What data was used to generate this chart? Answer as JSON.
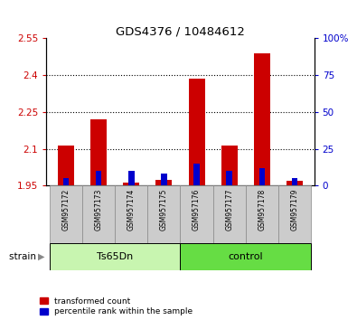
{
  "title": "GDS4376 / 10484612",
  "samples": [
    "GSM957172",
    "GSM957173",
    "GSM957174",
    "GSM957175",
    "GSM957176",
    "GSM957177",
    "GSM957178",
    "GSM957179"
  ],
  "groups": [
    "Ts65Dn",
    "Ts65Dn",
    "Ts65Dn",
    "Ts65Dn",
    "control",
    "control",
    "control",
    "control"
  ],
  "red_values": [
    2.115,
    2.22,
    1.963,
    1.973,
    2.385,
    2.115,
    2.49,
    1.968
  ],
  "blue_values": [
    5.0,
    10.0,
    10.0,
    8.0,
    15.0,
    10.0,
    12.0,
    5.0
  ],
  "ymin": 1.95,
  "ymax": 2.55,
  "yticks": [
    1.95,
    2.1,
    2.25,
    2.4,
    2.55
  ],
  "ytick_labels": [
    "1.95",
    "2.1",
    "2.25",
    "2.4",
    "2.55"
  ],
  "y2min": 0,
  "y2max": 100,
  "y2ticks": [
    0,
    25,
    50,
    75,
    100
  ],
  "y2tick_labels": [
    "0",
    "25",
    "50",
    "75",
    "100%"
  ],
  "grid_yticks": [
    2.1,
    2.25,
    2.4
  ],
  "bar_width": 0.5,
  "blue_bar_width": 0.18,
  "red_color": "#cc0000",
  "blue_color": "#0000cc",
  "bg_plot": "#ffffff",
  "bg_sample": "#cccccc",
  "tick_color_left": "#cc0000",
  "tick_color_right": "#0000cc",
  "legend_red": "transformed count",
  "legend_blue": "percentile rank within the sample",
  "strain_label": "strain",
  "ts65dn_color": "#c8f5b0",
  "control_color": "#66dd44",
  "ts65dn_indices": [
    0,
    1,
    2,
    3
  ],
  "control_indices": [
    4,
    5,
    6,
    7
  ]
}
